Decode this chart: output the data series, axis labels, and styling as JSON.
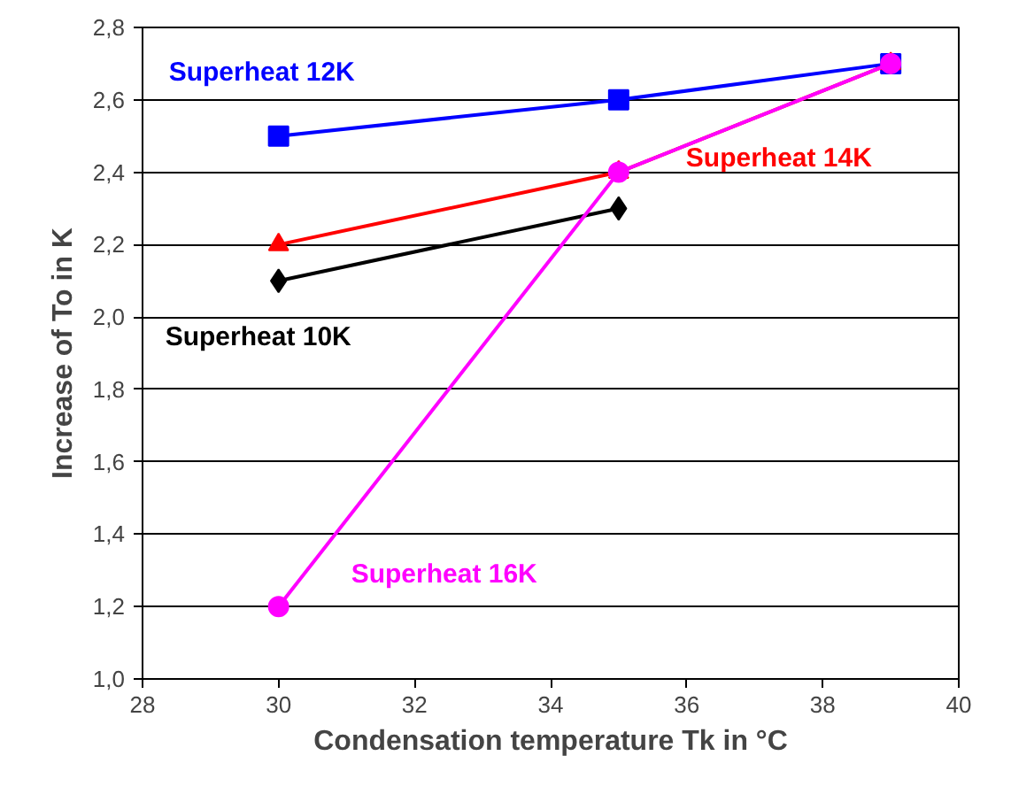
{
  "chart_data": {
    "type": "line",
    "xlabel": "Condensation temperature Tk in °C",
    "ylabel": "Increase of To in K",
    "xlim": [
      28,
      40
    ],
    "xticks": [
      28,
      30,
      32,
      34,
      36,
      38,
      40
    ],
    "ylim": [
      1.0,
      2.8
    ],
    "yticks": [
      {
        "value": 1.0,
        "label": "1,0"
      },
      {
        "value": 1.2,
        "label": "1,2"
      },
      {
        "value": 1.4,
        "label": "1,4"
      },
      {
        "value": 1.6,
        "label": "1,6"
      },
      {
        "value": 1.8,
        "label": "1,8"
      },
      {
        "value": 2.0,
        "label": "2,0"
      },
      {
        "value": 2.2,
        "label": "2,2"
      },
      {
        "value": 2.4,
        "label": "2,4"
      },
      {
        "value": 2.6,
        "label": "2,6"
      },
      {
        "value": 2.8,
        "label": "2,8"
      }
    ],
    "grid": "y",
    "series": [
      {
        "name": "Superheat 12K",
        "color": "#0000ff",
        "marker": "square",
        "x": [
          30,
          35,
          39
        ],
        "values": [
          2.5,
          2.6,
          2.7
        ]
      },
      {
        "name": "Superheat 14K",
        "color": "#ff0000",
        "marker": "triangle",
        "x": [
          30,
          35,
          39
        ],
        "values": [
          2.2,
          2.4,
          2.7
        ]
      },
      {
        "name": "Superheat 10K",
        "color": "#000000",
        "marker": "diamond",
        "x": [
          30,
          35
        ],
        "values": [
          2.1,
          2.3
        ]
      },
      {
        "name": "Superheat 16K",
        "color": "#ff00ff",
        "marker": "circle",
        "x": [
          30,
          35,
          39
        ],
        "values": [
          1.2,
          2.4,
          2.7
        ]
      }
    ]
  }
}
